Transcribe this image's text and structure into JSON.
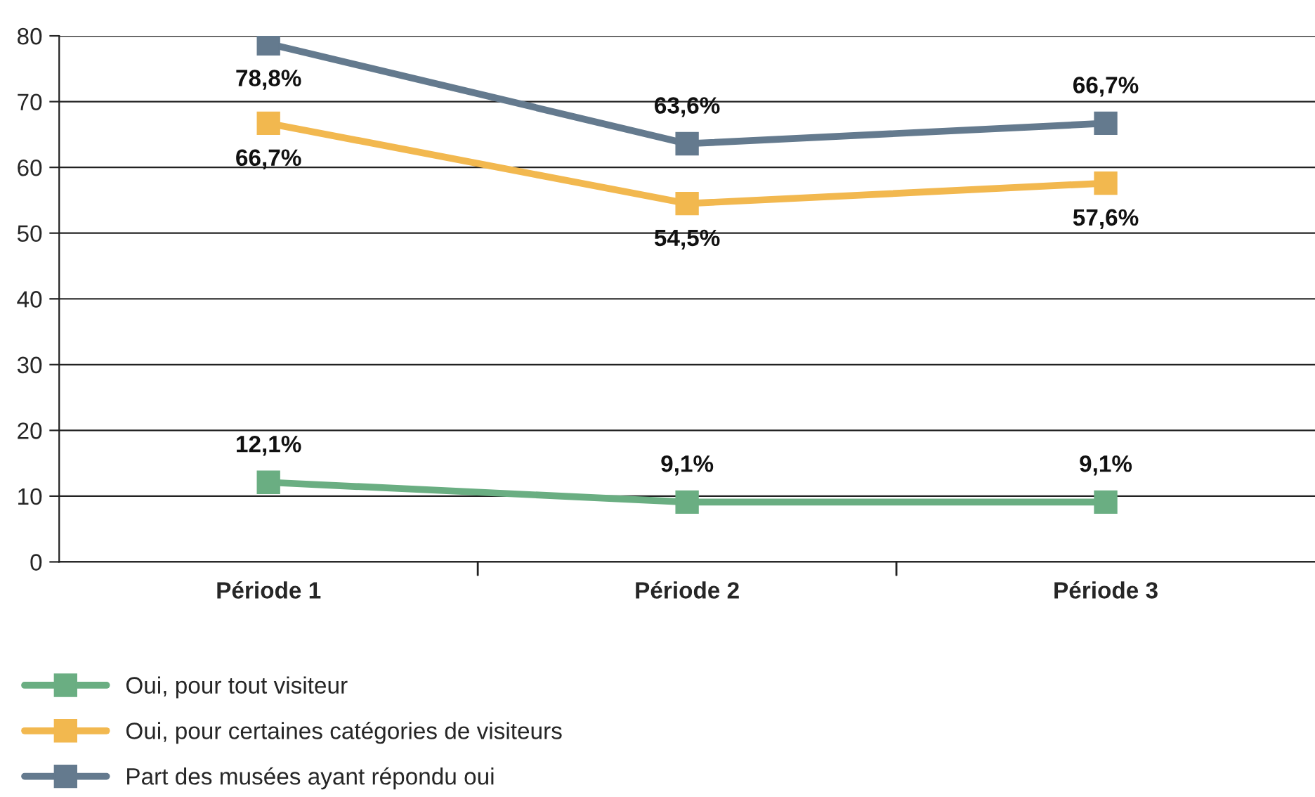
{
  "chart_data": {
    "type": "line",
    "categories": [
      "Période 1",
      "Période 2",
      "Période 3"
    ],
    "series": [
      {
        "name": "Oui, pour tout visiteur",
        "color": "#6aae82",
        "values": [
          12.1,
          9.1,
          9.1
        ],
        "value_labels": [
          "12,1%",
          "9,1%",
          "9,1%"
        ]
      },
      {
        "name": "Oui, pour certaines catégories de visiteurs",
        "color": "#f2b84f",
        "values": [
          66.7,
          54.5,
          57.6
        ],
        "value_labels": [
          "66,7%",
          "54,5%",
          "57,6%"
        ]
      },
      {
        "name": "Part des musées ayant répondu oui",
        "color": "#647a8e",
        "values": [
          78.8,
          63.6,
          66.7
        ],
        "value_labels": [
          "78,8%",
          "63,6%",
          "66,7%"
        ]
      }
    ],
    "ylim": [
      0,
      80
    ],
    "yticks": [
      0,
      10,
      20,
      30,
      40,
      50,
      60,
      70,
      80
    ],
    "grid": "y",
    "legend": "bottom left",
    "marker": "square",
    "line_style": "solid"
  }
}
